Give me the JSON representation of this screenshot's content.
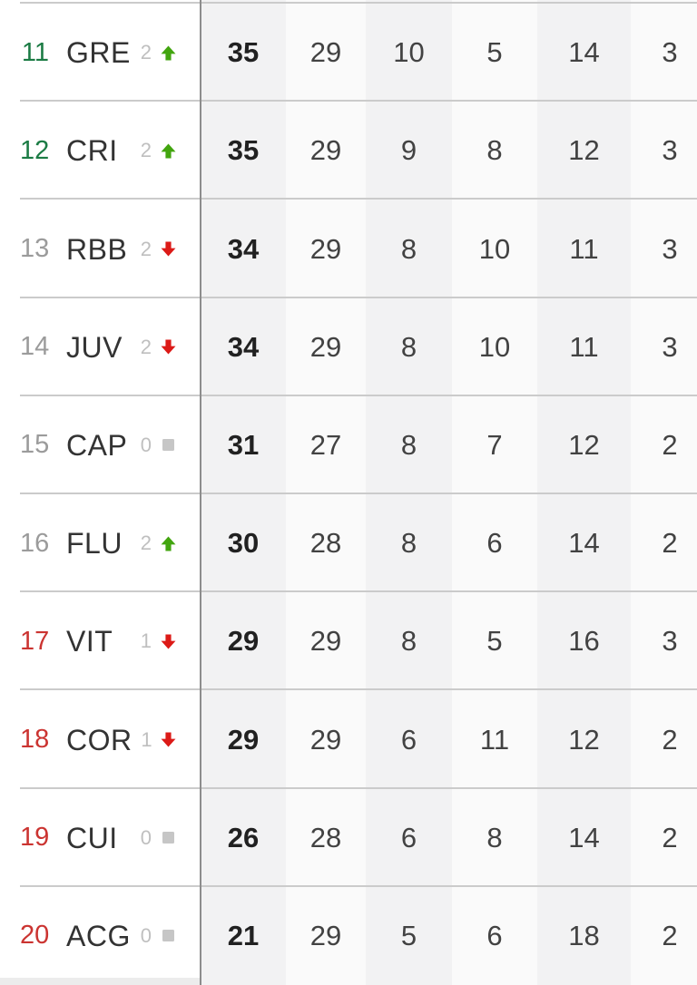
{
  "table": {
    "columns": [
      "position",
      "team",
      "change",
      "points",
      "played",
      "wins",
      "draws",
      "losses",
      "next_column_visible_digit"
    ],
    "rows": [
      {
        "position": "11",
        "position_color": "green",
        "team": "GRE",
        "change": "2",
        "trend": "up",
        "points": "35",
        "played": "29",
        "wins": "10",
        "draws": "5",
        "losses": "14",
        "last_visible": "3"
      },
      {
        "position": "12",
        "position_color": "green",
        "team": "CRI",
        "change": "2",
        "trend": "up",
        "points": "35",
        "played": "29",
        "wins": "9",
        "draws": "8",
        "losses": "12",
        "last_visible": "3"
      },
      {
        "position": "13",
        "position_color": "gray",
        "team": "RBB",
        "change": "2",
        "trend": "down",
        "points": "34",
        "played": "29",
        "wins": "8",
        "draws": "10",
        "losses": "11",
        "last_visible": "3"
      },
      {
        "position": "14",
        "position_color": "gray",
        "team": "JUV",
        "change": "2",
        "trend": "down",
        "points": "34",
        "played": "29",
        "wins": "8",
        "draws": "10",
        "losses": "11",
        "last_visible": "3"
      },
      {
        "position": "15",
        "position_color": "gray",
        "team": "CAP",
        "change": "0",
        "trend": "same",
        "points": "31",
        "played": "27",
        "wins": "8",
        "draws": "7",
        "losses": "12",
        "last_visible": "2"
      },
      {
        "position": "16",
        "position_color": "gray",
        "team": "FLU",
        "change": "2",
        "trend": "up",
        "points": "30",
        "played": "28",
        "wins": "8",
        "draws": "6",
        "losses": "14",
        "last_visible": "2"
      },
      {
        "position": "17",
        "position_color": "red",
        "team": "VIT",
        "change": "1",
        "trend": "down",
        "points": "29",
        "played": "29",
        "wins": "8",
        "draws": "5",
        "losses": "16",
        "last_visible": "3"
      },
      {
        "position": "18",
        "position_color": "red",
        "team": "COR",
        "change": "1",
        "trend": "down",
        "points": "29",
        "played": "29",
        "wins": "6",
        "draws": "11",
        "losses": "12",
        "last_visible": "2"
      },
      {
        "position": "19",
        "position_color": "red",
        "team": "CUI",
        "change": "0",
        "trend": "same",
        "points": "26",
        "played": "28",
        "wins": "6",
        "draws": "8",
        "losses": "14",
        "last_visible": "2"
      },
      {
        "position": "20",
        "position_color": "red",
        "team": "ACG",
        "change": "0",
        "trend": "same",
        "points": "21",
        "played": "29",
        "wins": "5",
        "draws": "6",
        "losses": "18",
        "last_visible": "2"
      }
    ],
    "colors": {
      "pos_green": "#1b7b44",
      "pos_gray": "#9b9b9b",
      "pos_red": "#cb3431",
      "team": "#333333",
      "change": "#bfbfbf",
      "arrow_up": "#42a50f",
      "arrow_down": "#dc1a17",
      "square": "#c6c6c6",
      "stat": "#424242",
      "points": "#212121",
      "divider": "#8d8d8d",
      "row_separator": "#cbcbcb",
      "band_gray": "#f2f2f3",
      "band_light": "#fafafa"
    }
  }
}
